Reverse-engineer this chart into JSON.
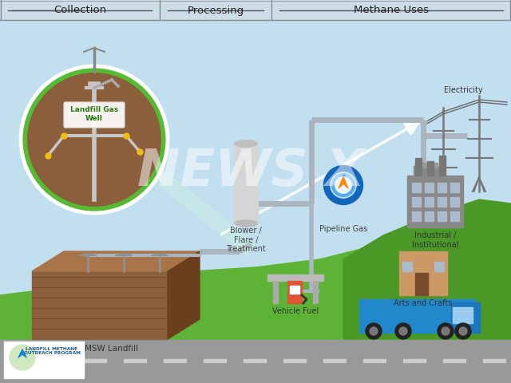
{
  "title_sections": [
    "Collection",
    "Processing",
    "Methane Uses"
  ],
  "bg_sky_color": "#c2dff0",
  "labels": {
    "landfill_gas_well": "Landfill Gas\nWell",
    "msw_landfill": "MSW Landfill",
    "blower_flare": "Blower /\nFlare /\nTreatment",
    "pipeline_gas": "Pipeline Gas",
    "vehicle_fuel": "Vehicle Fuel",
    "electricity": "Electricity",
    "industrial": "Industrial /\nInstitutional",
    "arts_crafts": "Arts and Crafts"
  },
  "watermark": "NEWS X",
  "watermark_color": "#ffffff",
  "watermark_alpha": 0.5,
  "footer_text": "LANDFILL METHANE\nOUTREACH PROGRAM",
  "pipe_color": "#aab5c0",
  "ground_brown": "#8B5E3C",
  "ground_dark": "#6B3F1E",
  "green_ground": "#5db336",
  "green_dark": "#4a9926"
}
